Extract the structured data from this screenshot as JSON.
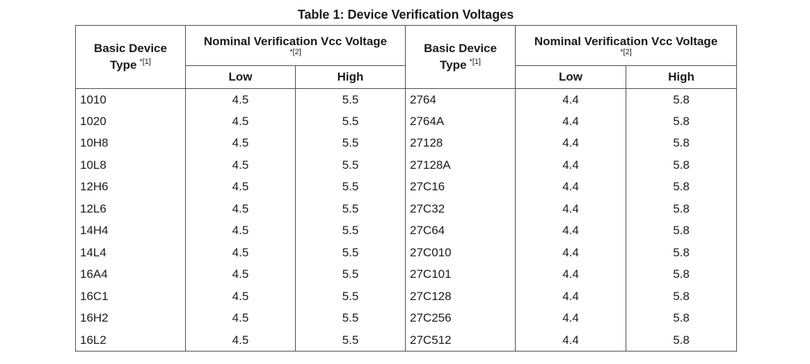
{
  "caption": "Table 1:  Device Verification Voltages",
  "header": {
    "basic_device_type_line1": "Basic Device",
    "basic_device_type_line2": "Type",
    "basic_device_type_footnote": "*[1]",
    "nominal_voltage": "Nominal Verification Vcc Voltage",
    "nominal_voltage_footnote": "*[2]",
    "low": "Low",
    "high": "High"
  },
  "rows": [
    {
      "device_left": "1010",
      "low_left": "4.5",
      "high_left": "5.5",
      "device_right": "2764",
      "low_right": "4.4",
      "high_right": "5.8"
    },
    {
      "device_left": "1020",
      "low_left": "4.5",
      "high_left": "5.5",
      "device_right": "2764A",
      "low_right": "4.4",
      "high_right": "5.8"
    },
    {
      "device_left": "10H8",
      "low_left": "4.5",
      "high_left": "5.5",
      "device_right": "27128",
      "low_right": "4.4",
      "high_right": "5.8"
    },
    {
      "device_left": "10L8",
      "low_left": "4.5",
      "high_left": "5.5",
      "device_right": "27128A",
      "low_right": "4.4",
      "high_right": "5.8"
    },
    {
      "device_left": "12H6",
      "low_left": "4.5",
      "high_left": "5.5",
      "device_right": "27C16",
      "low_right": "4.4",
      "high_right": "5.8"
    },
    {
      "device_left": "12L6",
      "low_left": "4.5",
      "high_left": "5.5",
      "device_right": "27C32",
      "low_right": "4.4",
      "high_right": "5.8"
    },
    {
      "device_left": "14H4",
      "low_left": "4.5",
      "high_left": "5.5",
      "device_right": "27C64",
      "low_right": "4.4",
      "high_right": "5.8"
    },
    {
      "device_left": "14L4",
      "low_left": "4.5",
      "high_left": "5.5",
      "device_right": "27C010",
      "low_right": "4.4",
      "high_right": "5.8"
    },
    {
      "device_left": "16A4",
      "low_left": "4.5",
      "high_left": "5.5",
      "device_right": "27C101",
      "low_right": "4.4",
      "high_right": "5.8"
    },
    {
      "device_left": "16C1",
      "low_left": "4.5",
      "high_left": "5.5",
      "device_right": "27C128",
      "low_right": "4.4",
      "high_right": "5.8"
    },
    {
      "device_left": "16H2",
      "low_left": "4.5",
      "high_left": "5.5",
      "device_right": "27C256",
      "low_right": "4.4",
      "high_right": "5.8"
    },
    {
      "device_left": "16L2",
      "low_left": "4.5",
      "high_left": "5.5",
      "device_right": "27C512",
      "low_right": "4.4",
      "high_right": "5.8"
    }
  ]
}
